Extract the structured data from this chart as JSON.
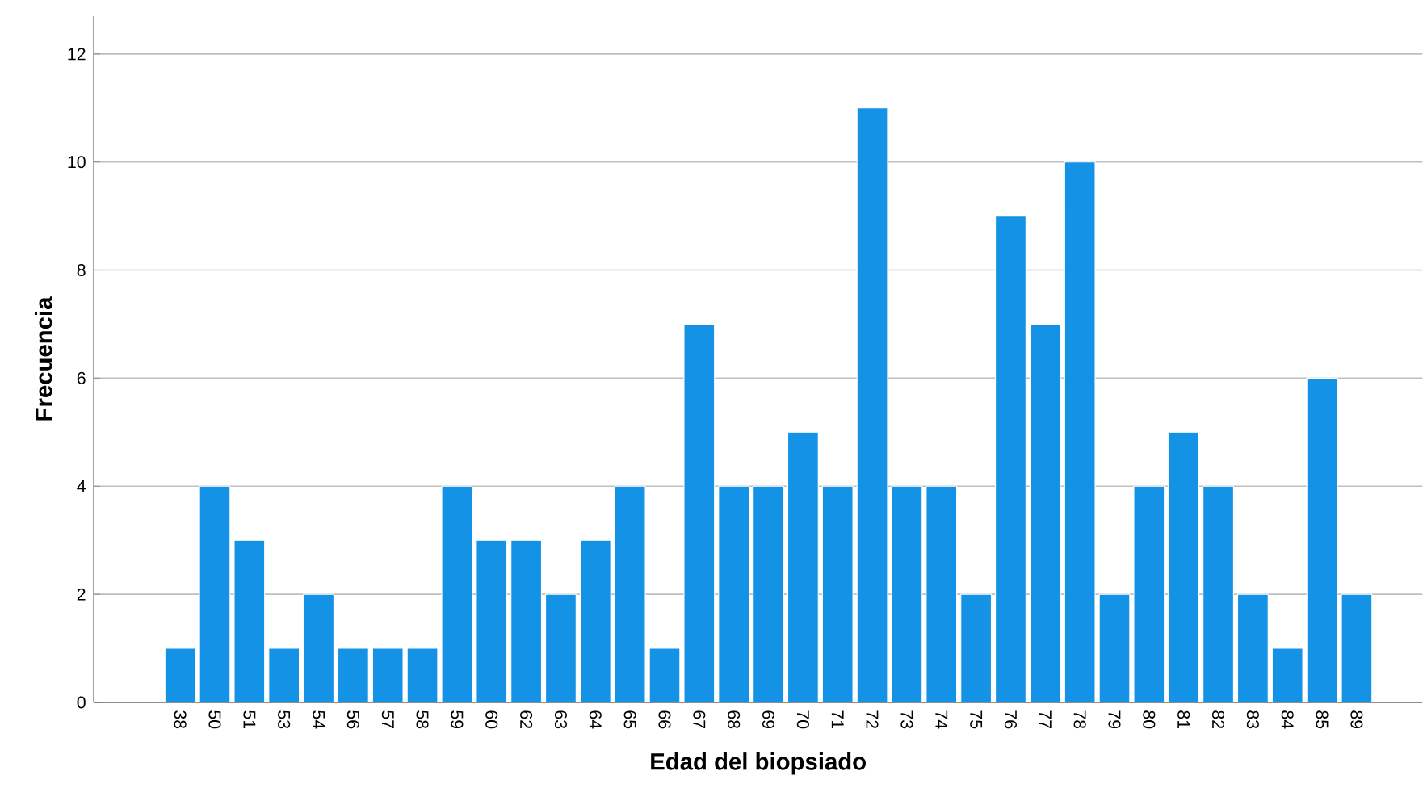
{
  "chart_data": {
    "type": "bar",
    "xlabel": "Edad del biopsiado",
    "ylabel": "Frecuencia",
    "categories": [
      "38",
      "50",
      "51",
      "53",
      "54",
      "56",
      "57",
      "58",
      "59",
      "60",
      "62",
      "63",
      "64",
      "65",
      "66",
      "67",
      "68",
      "69",
      "70",
      "71",
      "72",
      "73",
      "74",
      "75",
      "76",
      "77",
      "78",
      "79",
      "80",
      "81",
      "82",
      "83",
      "84",
      "85",
      "89"
    ],
    "values": [
      1,
      4,
      3,
      1,
      2,
      1,
      1,
      1,
      4,
      3,
      3,
      2,
      3,
      4,
      1,
      7,
      4,
      4,
      5,
      4,
      11,
      4,
      4,
      2,
      9,
      7,
      10,
      2,
      4,
      5,
      4,
      2,
      1,
      6,
      2
    ],
    "color": "#1492e6",
    "ylim": [
      0,
      12.7
    ],
    "yticks": [
      0,
      2,
      4,
      6,
      8,
      10,
      12
    ],
    "grid": "y"
  }
}
